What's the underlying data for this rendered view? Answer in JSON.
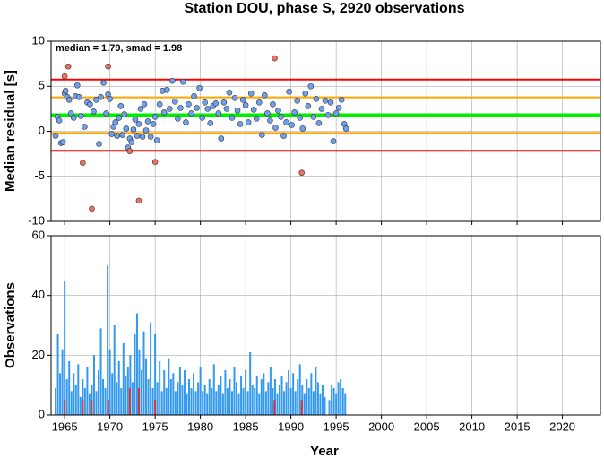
{
  "chart_data": [
    {
      "type": "scatter",
      "title": "Station DOU, phase S, 2920 observations",
      "ylabel": "Median residual [s]",
      "annotation": "median = 1.79, smad = 1.98",
      "xlim": [
        1963.5,
        2024.2
      ],
      "ylim": [
        -10,
        10
      ],
      "yticks": [
        -10,
        -5,
        0,
        5,
        10
      ],
      "xticks": [
        1965,
        1970,
        1975,
        1980,
        1985,
        1990,
        1995,
        2000,
        2005,
        2010,
        2015,
        2020
      ],
      "grid": true,
      "lines": [
        {
          "value": 5.75,
          "color": "#ff0000"
        },
        {
          "value": 3.77,
          "color": "#ffa500"
        },
        {
          "value": 1.79,
          "color": "#00ee00"
        },
        {
          "value": -0.19,
          "color": "#ffa500"
        },
        {
          "value": -2.17,
          "color": "#ff0000"
        }
      ],
      "series": [
        {
          "color": "#6ea0f0",
          "x": [
            1964.0,
            1964.2,
            1964.4,
            1964.6,
            1964.8,
            1965.0,
            1965.1,
            1965.3,
            1965.5,
            1965.7,
            1966.0,
            1966.2,
            1966.4,
            1966.6,
            1966.8,
            1967.2,
            1967.5,
            1967.8,
            1968.2,
            1968.5,
            1968.8,
            1969.0,
            1969.3,
            1969.6,
            1969.8,
            1970.0,
            1970.2,
            1970.4,
            1970.6,
            1970.8,
            1971.0,
            1971.2,
            1971.4,
            1971.6,
            1971.8,
            1972.0,
            1972.2,
            1972.4,
            1972.6,
            1972.8,
            1973.0,
            1973.2,
            1973.4,
            1973.6,
            1973.8,
            1974.0,
            1974.2,
            1974.5,
            1974.8,
            1975.0,
            1975.2,
            1975.5,
            1975.8,
            1976.0,
            1976.3,
            1976.6,
            1976.9,
            1977.2,
            1977.5,
            1977.8,
            1978.1,
            1978.4,
            1978.7,
            1979.0,
            1979.3,
            1979.6,
            1979.9,
            1980.2,
            1980.5,
            1980.8,
            1981.1,
            1981.4,
            1981.7,
            1982.0,
            1982.3,
            1982.6,
            1982.9,
            1983.2,
            1983.5,
            1983.8,
            1984.1,
            1984.4,
            1984.7,
            1985.0,
            1985.3,
            1985.6,
            1985.9,
            1986.2,
            1986.5,
            1986.8,
            1987.1,
            1987.4,
            1987.7,
            1988.0,
            1988.3,
            1988.6,
            1988.9,
            1989.2,
            1989.5,
            1989.8,
            1990.1,
            1990.4,
            1990.7,
            1991.0,
            1991.3,
            1991.6,
            1991.9,
            1992.2,
            1992.5,
            1992.8,
            1993.1,
            1993.4,
            1993.8,
            1994.1,
            1994.4,
            1994.7,
            1995.0,
            1995.3,
            1995.6,
            1995.9,
            1996.1
          ],
          "values": [
            -0.5,
            1.6,
            1.2,
            -1.3,
            -1.2,
            4.2,
            4.5,
            3.8,
            3.5,
            2.0,
            1.5,
            3.9,
            5.1,
            3.8,
            1.7,
            0.5,
            3.2,
            3.0,
            2.2,
            3.5,
            -1.4,
            3.8,
            5.4,
            2.0,
            4.1,
            3.6,
            -0.3,
            0.5,
            1.0,
            -0.5,
            1.5,
            2.8,
            -0.4,
            1.9,
            0.3,
            -1.8,
            -0.8,
            -1.2,
            0.2,
            1.3,
            -0.5,
            0.8,
            2.5,
            -0.6,
            3.0,
            0.1,
            1.1,
            -0.6,
            0.8,
            1.6,
            -1.0,
            3.0,
            4.5,
            2.1,
            4.6,
            2.5,
            5.6,
            3.3,
            1.4,
            2.6,
            5.5,
            1.0,
            3.0,
            2.0,
            3.9,
            2.6,
            4.8,
            1.5,
            3.2,
            2.5,
            0.9,
            2.8,
            3.1,
            2.0,
            -0.8,
            3.2,
            2.5,
            4.3,
            1.5,
            3.7,
            2.3,
            0.8,
            3.5,
            2.9,
            1.0,
            4.2,
            2.4,
            1.4,
            3.2,
            -0.4,
            4.0,
            2.0,
            1.2,
            3.0,
            0.4,
            2.3,
            1.6,
            -0.5,
            1.0,
            4.4,
            0.7,
            2.1,
            3.4,
            1.5,
            0.3,
            4.2,
            2.8,
            5.0,
            1.6,
            3.6,
            0.9,
            2.5,
            3.4,
            1.8,
            3.2,
            -1.1,
            2.0,
            2.6,
            3.5,
            0.8,
            0.3
          ]
        },
        {
          "color": "#f07060",
          "x": [
            1965.0,
            1965.4,
            1967.0,
            1968.0,
            1969.8,
            1972.2,
            1973.2,
            1975.0,
            1988.2,
            1991.2
          ],
          "values": [
            6.1,
            7.2,
            -3.5,
            -8.6,
            7.2,
            -2.2,
            -7.7,
            -3.4,
            8.1,
            -4.6
          ]
        }
      ]
    },
    {
      "type": "bar",
      "ylabel": "Observations",
      "xlabel": "Year",
      "xlim": [
        1963.5,
        2024.2
      ],
      "ylim": [
        0,
        60
      ],
      "yticks": [
        0,
        20,
        40,
        60
      ],
      "xticks": [
        1965,
        1970,
        1975,
        1980,
        1985,
        1990,
        1995,
        2000,
        2005,
        2010,
        2015,
        2020
      ],
      "grid": true,
      "series": [
        {
          "color": "#3399ee",
          "x": [
            1964,
            1964.25,
            1964.5,
            1964.75,
            1965,
            1965.25,
            1965.5,
            1965.75,
            1966,
            1966.25,
            1966.5,
            1966.75,
            1967,
            1967.25,
            1967.5,
            1967.75,
            1968,
            1968.25,
            1968.5,
            1968.75,
            1969,
            1969.25,
            1969.5,
            1969.75,
            1970,
            1970.25,
            1970.5,
            1970.75,
            1971,
            1971.25,
            1971.5,
            1971.75,
            1972,
            1972.25,
            1972.5,
            1972.75,
            1973,
            1973.25,
            1973.5,
            1973.75,
            1974,
            1974.25,
            1974.5,
            1974.75,
            1975,
            1975.25,
            1975.5,
            1975.75,
            1976,
            1976.25,
            1976.5,
            1976.75,
            1977,
            1977.25,
            1977.5,
            1977.75,
            1978,
            1978.25,
            1978.5,
            1978.75,
            1979,
            1979.25,
            1979.5,
            1979.75,
            1980,
            1980.25,
            1980.5,
            1980.75,
            1981,
            1981.25,
            1981.5,
            1981.75,
            1982,
            1982.25,
            1982.5,
            1982.75,
            1983,
            1983.25,
            1983.5,
            1983.75,
            1984,
            1984.25,
            1984.5,
            1984.75,
            1985,
            1985.25,
            1985.5,
            1985.75,
            1986,
            1986.25,
            1986.5,
            1986.75,
            1987,
            1987.25,
            1987.5,
            1987.75,
            1988,
            1988.25,
            1988.5,
            1988.75,
            1989,
            1989.25,
            1989.5,
            1989.75,
            1990,
            1990.25,
            1990.5,
            1990.75,
            1991,
            1991.25,
            1991.5,
            1991.75,
            1992,
            1992.25,
            1992.5,
            1992.75,
            1993,
            1993.25,
            1993.5,
            1993.75,
            1994,
            1994.25,
            1994.5,
            1994.75,
            1995,
            1995.25,
            1995.5,
            1995.75,
            1996
          ],
          "values": [
            9,
            27,
            14,
            22,
            45,
            12,
            18,
            8,
            14,
            10,
            17,
            6,
            12,
            9,
            16,
            7,
            10,
            20,
            8,
            15,
            29,
            12,
            9,
            50,
            22,
            14,
            30,
            11,
            18,
            9,
            24,
            13,
            16,
            20,
            11,
            27,
            34,
            22,
            15,
            28,
            19,
            12,
            31,
            9,
            27,
            11,
            18,
            8,
            15,
            9,
            19,
            12,
            14,
            8,
            11,
            16,
            10,
            15,
            7,
            12,
            9,
            14,
            8,
            11,
            16,
            8,
            10,
            7,
            12,
            9,
            17,
            8,
            10,
            13,
            7,
            15,
            9,
            12,
            8,
            16,
            11,
            7,
            13,
            9,
            15,
            8,
            21,
            10,
            9,
            13,
            7,
            12,
            14,
            8,
            11,
            16,
            9,
            12,
            7,
            10,
            13,
            8,
            11,
            15,
            9,
            14,
            8,
            12,
            17,
            10,
            7,
            12,
            9,
            14,
            8,
            16,
            11,
            7,
            10,
            6,
            0,
            5,
            10,
            9,
            7,
            11,
            12,
            9,
            7
          ]
        },
        {
          "color": "#e03030",
          "x": [
            1965.0,
            1967.0,
            1968.0,
            1969.8,
            1972.2,
            1973.2,
            1975.0,
            1988.2,
            1991.2
          ],
          "values": [
            5,
            5,
            5,
            5,
            9,
            9,
            5,
            5,
            5
          ]
        }
      ]
    }
  ]
}
